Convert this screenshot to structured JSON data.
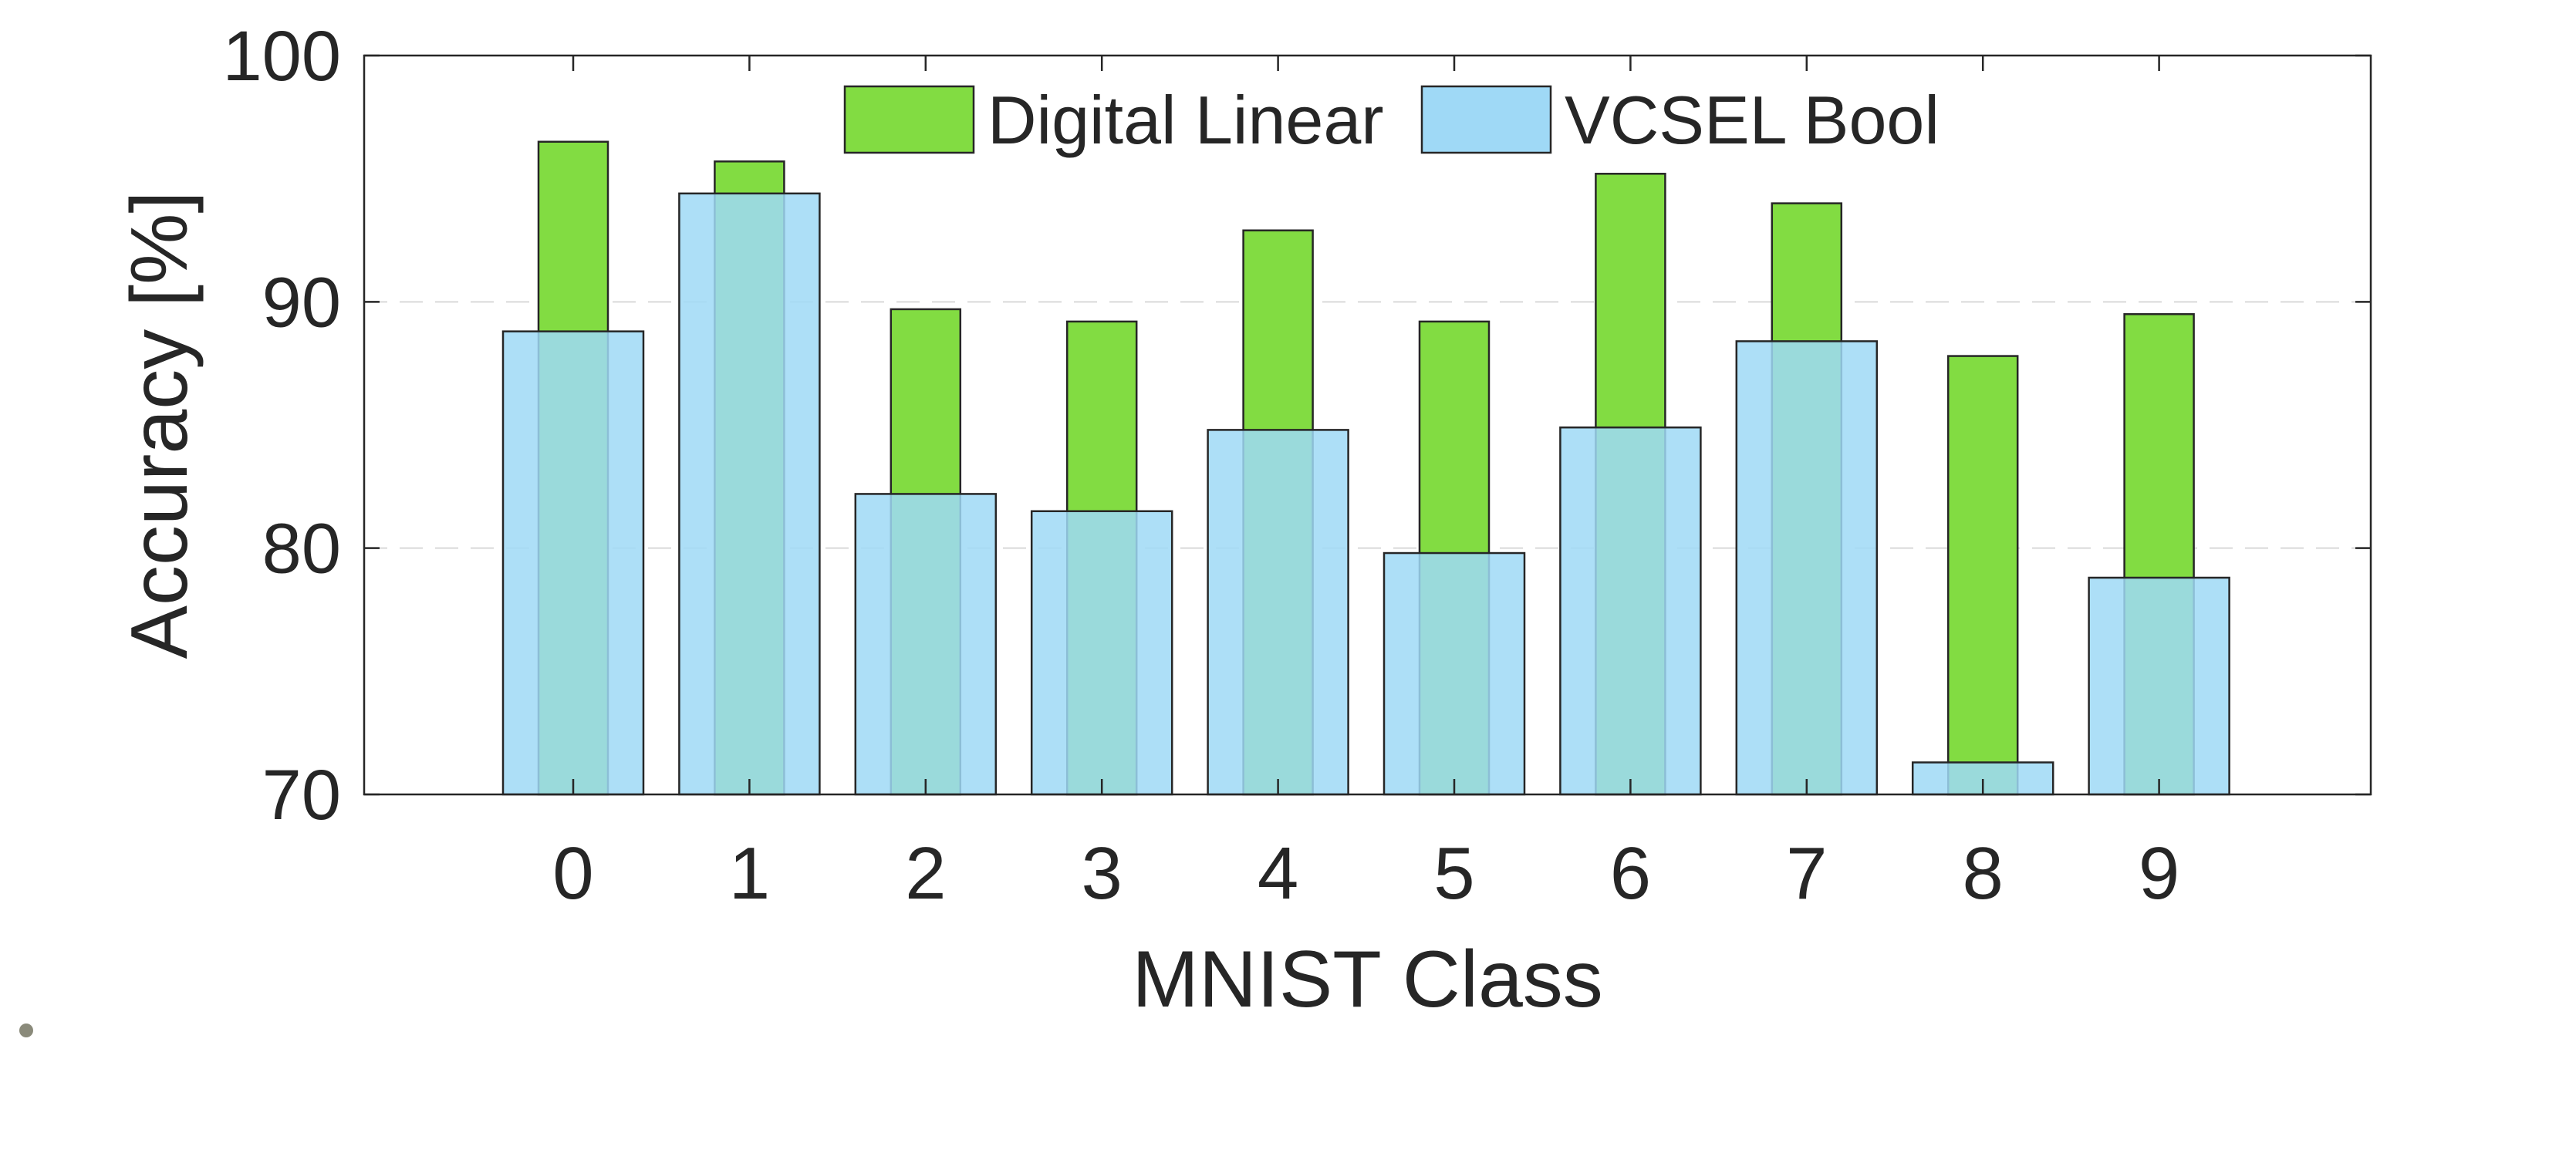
{
  "chart_data": {
    "type": "bar",
    "title": "",
    "xlabel": "MNIST Class",
    "ylabel": "Accuracy [%]",
    "ylim": [
      70,
      100
    ],
    "yticks": [
      70,
      80,
      90,
      100
    ],
    "ytick_labels": [
      "70",
      "80",
      "90",
      "100"
    ],
    "grid": "dashed horizontal at 80 and 90",
    "legend_position": "top-center",
    "categories": [
      "0",
      "1",
      "2",
      "3",
      "4",
      "5",
      "6",
      "7",
      "8",
      "9"
    ],
    "series": [
      {
        "name": "Digital Linear",
        "color": "#82dc42",
        "values": [
          96.5,
          95.7,
          89.7,
          89.2,
          92.9,
          89.2,
          95.2,
          94.0,
          87.8,
          89.5
        ]
      },
      {
        "name": "VCSEL Bool",
        "color": "#9fd9f6",
        "opacity": 0.85,
        "values": [
          88.8,
          94.4,
          82.2,
          81.5,
          84.8,
          79.8,
          84.9,
          88.4,
          71.3,
          78.8
        ]
      }
    ]
  }
}
